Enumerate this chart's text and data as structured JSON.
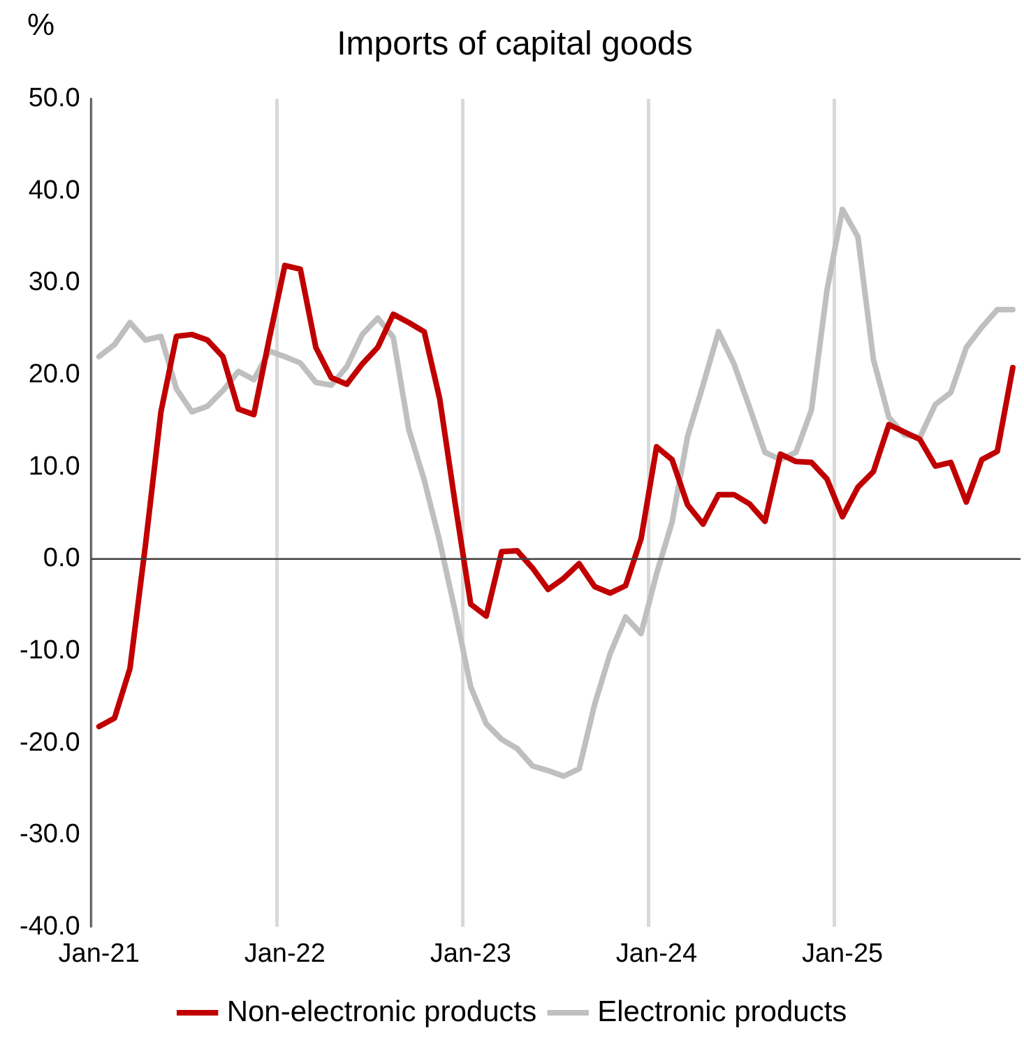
{
  "chart_data": {
    "type": "line",
    "title": "Imports of capital goods",
    "ylabel": "%",
    "categories": [
      "Jan-21",
      null,
      null,
      null,
      null,
      null,
      null,
      null,
      null,
      null,
      null,
      null,
      "Jan-22",
      null,
      null,
      null,
      null,
      null,
      null,
      null,
      null,
      null,
      null,
      null,
      "Jan-23",
      null,
      null,
      null,
      null,
      null,
      null,
      null,
      null,
      null,
      null,
      null,
      "Jan-24",
      null,
      null,
      null,
      null,
      null,
      null,
      null,
      null,
      null,
      null,
      null,
      "Jan-25",
      null,
      null,
      null,
      null,
      null,
      null,
      null,
      null,
      null,
      null,
      null
    ],
    "series": [
      {
        "name": "Non-electronic products",
        "color": "#c00000",
        "values": [
          -18.2,
          -17.3,
          -11.9,
          1.5,
          16.0,
          24.2,
          24.4,
          23.8,
          22.0,
          16.3,
          15.7,
          24.0,
          31.9,
          31.5,
          23.0,
          19.7,
          19.0,
          21.2,
          23.0,
          26.6,
          25.7,
          24.7,
          17.4,
          6.0,
          -4.9,
          -6.2,
          0.8,
          0.9,
          -1.0,
          -3.3,
          -2.1,
          -0.5,
          -3.0,
          -3.7,
          -2.9,
          2.2,
          12.2,
          10.8,
          5.9,
          3.8,
          7.0,
          7.0,
          6.0,
          4.1,
          11.4,
          10.6,
          10.5,
          8.7,
          4.6,
          7.8,
          9.5,
          14.6,
          13.8,
          13.0,
          10.1,
          10.5,
          6.2,
          10.8,
          11.7,
          20.8
        ]
      },
      {
        "name": "Electronic products",
        "color": "#bfbfbf",
        "values": [
          22.0,
          23.3,
          25.7,
          23.8,
          24.2,
          18.5,
          16.0,
          16.6,
          18.3,
          20.4,
          19.5,
          22.6,
          22.0,
          21.3,
          19.2,
          18.9,
          20.9,
          24.4,
          26.2,
          24.1,
          14.1,
          8.6,
          1.9,
          -5.7,
          -13.9,
          -17.9,
          -19.6,
          -20.6,
          -22.5,
          -23.0,
          -23.6,
          -22.8,
          -15.8,
          -10.3,
          -6.3,
          -8.1,
          -1.6,
          4.0,
          13.3,
          18.9,
          24.7,
          21.2,
          16.5,
          11.6,
          10.8,
          11.6,
          16.2,
          29.2,
          38.0,
          35.0,
          21.7,
          15.4,
          13.5,
          13.2,
          16.8,
          18.1,
          23.0,
          25.2,
          27.1,
          27.1
        ]
      }
    ],
    "ylim": [
      -40,
      50
    ],
    "yticks": [
      {
        "value": -40,
        "label": "-40.0"
      },
      {
        "value": -30,
        "label": "-30.0"
      },
      {
        "value": -20,
        "label": "-20.0"
      },
      {
        "value": -10,
        "label": "-10.0"
      },
      {
        "value": 0,
        "label": "0.0"
      },
      {
        "value": 10,
        "label": "10.0"
      },
      {
        "value": 20,
        "label": "20.0"
      },
      {
        "value": 30,
        "label": "30.0"
      },
      {
        "value": 40,
        "label": "40.0"
      },
      {
        "value": 50,
        "label": "50.0"
      }
    ],
    "ref_lines": [
      {
        "axis": "y",
        "value": 0,
        "color": "#404040"
      }
    ],
    "grid": "x",
    "legend": "bottom",
    "marker": "none",
    "line_style": "solid"
  }
}
